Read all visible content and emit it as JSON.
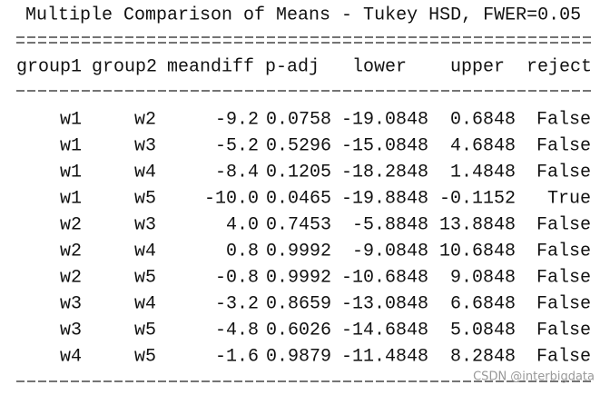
{
  "title": "Multiple Comparison of Means - Tukey HSD, FWER=0.05",
  "table": {
    "header": [
      "group1",
      "group2",
      "meandiff",
      "p-adj",
      "lower",
      "upper",
      "reject"
    ],
    "rows": [
      [
        "w1",
        "w2",
        "-9.2",
        "0.0758",
        "-19.0848",
        "0.6848",
        "False"
      ],
      [
        "w1",
        "w3",
        "-5.2",
        "0.5296",
        "-15.0848",
        "4.6848",
        "False"
      ],
      [
        "w1",
        "w4",
        "-8.4",
        "0.1205",
        "-18.2848",
        "1.4848",
        "False"
      ],
      [
        "w1",
        "w5",
        "-10.0",
        "0.0465",
        "-19.8848",
        "-0.1152",
        "True"
      ],
      [
        "w2",
        "w3",
        "4.0",
        "0.7453",
        "-5.8848",
        "13.8848",
        "False"
      ],
      [
        "w2",
        "w4",
        "0.8",
        "0.9992",
        "-9.0848",
        "10.6848",
        "False"
      ],
      [
        "w2",
        "w5",
        "-0.8",
        "0.9992",
        "-10.6848",
        "9.0848",
        "False"
      ],
      [
        "w3",
        "w4",
        "-3.2",
        "0.8659",
        "-13.0848",
        "6.6848",
        "False"
      ],
      [
        "w3",
        "w5",
        "-4.8",
        "0.6026",
        "-14.6848",
        "5.0848",
        "False"
      ],
      [
        "w4",
        "w5",
        "-1.6",
        "0.9879",
        "-11.4848",
        "8.2848",
        "False"
      ]
    ]
  },
  "watermark": "CSDN @interbigdata"
}
